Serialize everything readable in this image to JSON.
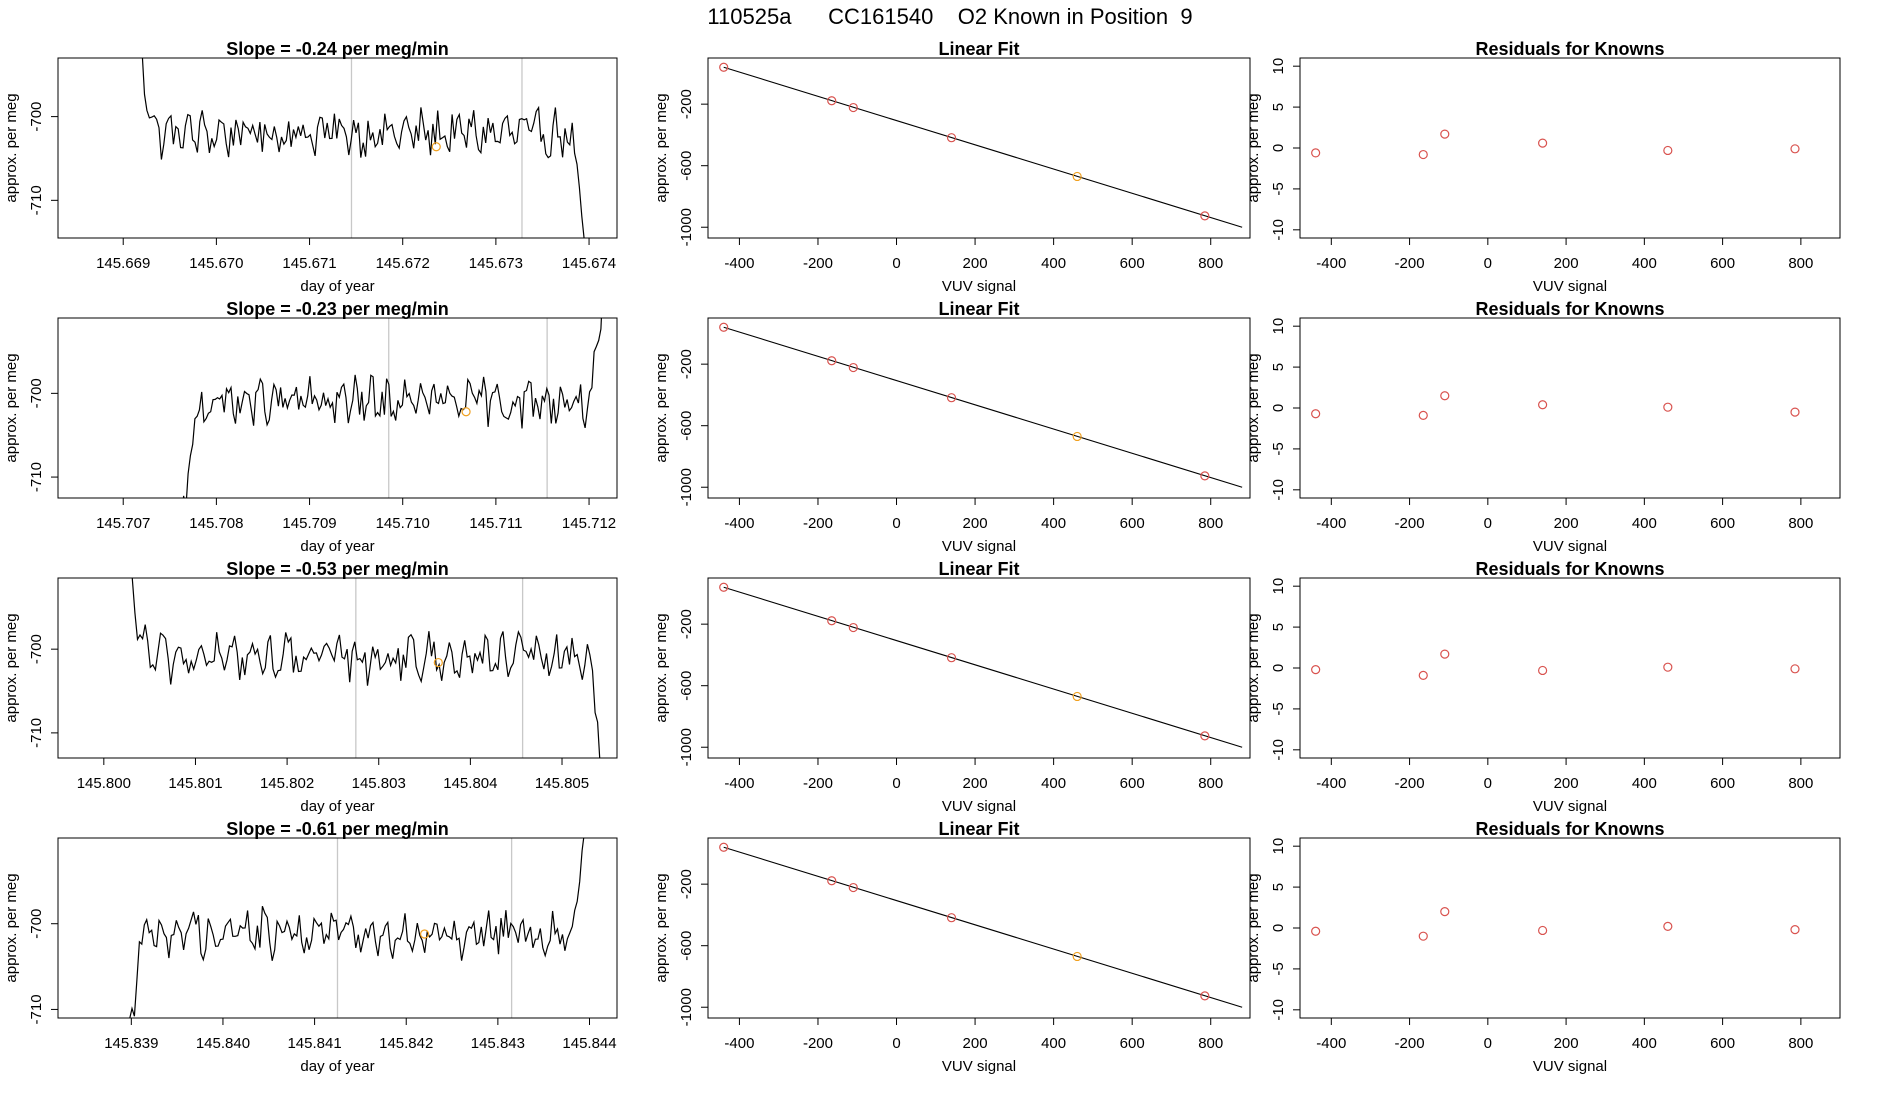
{
  "page_title": "110525a      CC161540    O2 Known in Position  9",
  "colors": {
    "trace": "#000000",
    "marker_red": "#d9534f",
    "marker_orange": "#f0a020",
    "refline": "#c8c8c8",
    "frame": "#000000"
  },
  "chart_data": [
    {
      "type": "line",
      "row": 0,
      "title": "Slope =  -0.24  per meg/min",
      "xlabel": "day of year",
      "ylabel": "approx. per meg",
      "xlim": [
        145.6683,
        145.6743
      ],
      "ylim": [
        -714.5,
        -693
      ],
      "xticks": [
        145.669,
        145.67,
        145.671,
        145.672,
        145.673,
        145.674
      ],
      "xtick_labels": [
        "145.669",
        "145.670",
        "145.671",
        "145.672",
        "145.673",
        "145.674"
      ],
      "yticks": [
        -700,
        -710
      ],
      "ytick_labels": [
        "-700",
        "-710"
      ],
      "start": 145.6691,
      "end": 145.674,
      "enter": "top",
      "exit": "bottom",
      "mean": -702,
      "vlines": [
        145.67145,
        145.67328
      ],
      "marker": [
        145.67236,
        -703.6
      ]
    },
    {
      "type": "bar-free-residuals",
      "row": 0,
      "title": "Linear Fit",
      "xlabel": "VUV signal",
      "ylabel": "approx. per meg",
      "xlim": [
        -480,
        900
      ],
      "ylim": [
        -1070,
        100
      ],
      "xticks": [
        -400,
        -200,
        0,
        200,
        400,
        600,
        800
      ],
      "xtick_labels": [
        "-400",
        "-200",
        "0",
        "200",
        "400",
        "600",
        "800"
      ],
      "yticks": [
        -200,
        -600,
        -1000
      ],
      "ytick_labels": [
        "-200",
        "-600",
        "-1000"
      ],
      "fit_line": [
        [
          -440,
          40
        ],
        [
          880,
          -1000
        ]
      ],
      "points": [
        [
          -440,
          40
        ],
        [
          -165,
          -178
        ],
        [
          -110,
          -222
        ],
        [
          140,
          -418
        ],
        [
          460,
          -670
        ],
        [
          785,
          -926
        ]
      ],
      "highlight_index": 4
    },
    {
      "type": "scatter",
      "row": 0,
      "title": "Residuals for Knowns",
      "xlabel": "VUV signal",
      "ylabel": "approx. per meg",
      "xlim": [
        -480,
        900
      ],
      "ylim": [
        -11,
        11
      ],
      "xticks": [
        -400,
        -200,
        0,
        200,
        400,
        600,
        800
      ],
      "xtick_labels": [
        "-400",
        "-200",
        "0",
        "200",
        "400",
        "600",
        "800"
      ],
      "yticks": [
        10,
        5,
        0,
        -5,
        -10
      ],
      "ytick_labels": [
        "10",
        "5",
        "0",
        "-5",
        "-10"
      ],
      "x": [
        -440,
        -165,
        -110,
        140,
        460,
        785
      ],
      "y": [
        -0.6,
        -0.8,
        1.7,
        0.6,
        -0.3,
        -0.1
      ]
    },
    {
      "type": "line",
      "row": 1,
      "title": "Slope =  -0.23  per meg/min",
      "xlabel": "day of year",
      "ylabel": "approx. per meg",
      "xlim": [
        145.7063,
        145.7123
      ],
      "ylim": [
        -712.5,
        -691
      ],
      "xticks": [
        145.707,
        145.708,
        145.709,
        145.71,
        145.711,
        145.712
      ],
      "xtick_labels": [
        "145.707",
        "145.708",
        "145.709",
        "145.710",
        "145.711",
        "145.712"
      ],
      "yticks": [
        -700,
        -710
      ],
      "ytick_labels": [
        "-700",
        "-710"
      ],
      "start": 145.7076,
      "end": 145.7122,
      "enter": "bottom",
      "exit": "top",
      "mean": -701,
      "vlines": [
        145.70985,
        145.71155
      ],
      "marker": [
        145.71068,
        -702.2
      ]
    },
    {
      "type": "bar-free-residuals",
      "row": 1,
      "title": "Linear Fit",
      "xlabel": "VUV signal",
      "ylabel": "approx. per meg",
      "xlim": [
        -480,
        900
      ],
      "ylim": [
        -1070,
        100
      ],
      "xticks": [
        -400,
        -200,
        0,
        200,
        400,
        600,
        800
      ],
      "xtick_labels": [
        "-400",
        "-200",
        "0",
        "200",
        "400",
        "600",
        "800"
      ],
      "yticks": [
        -200,
        -600,
        -1000
      ],
      "ytick_labels": [
        "-200",
        "-600",
        "-1000"
      ],
      "fit_line": [
        [
          -440,
          40
        ],
        [
          880,
          -1000
        ]
      ],
      "points": [
        [
          -440,
          40
        ],
        [
          -165,
          -178
        ],
        [
          -110,
          -222
        ],
        [
          140,
          -418
        ],
        [
          460,
          -670
        ],
        [
          785,
          -926
        ]
      ],
      "highlight_index": 4
    },
    {
      "type": "scatter",
      "row": 1,
      "title": "Residuals for Knowns",
      "xlabel": "VUV signal",
      "ylabel": "approx. per meg",
      "xlim": [
        -480,
        900
      ],
      "ylim": [
        -11,
        11
      ],
      "xticks": [
        -400,
        -200,
        0,
        200,
        400,
        600,
        800
      ],
      "xtick_labels": [
        "-400",
        "-200",
        "0",
        "200",
        "400",
        "600",
        "800"
      ],
      "yticks": [
        10,
        5,
        0,
        -5,
        -10
      ],
      "ytick_labels": [
        "10",
        "5",
        "0",
        "-5",
        "-10"
      ],
      "x": [
        -440,
        -165,
        -110,
        140,
        460,
        785
      ],
      "y": [
        -0.7,
        -0.9,
        1.5,
        0.4,
        0.1,
        -0.5
      ]
    },
    {
      "type": "line",
      "row": 2,
      "title": "Slope =  -0.53  per meg/min",
      "xlabel": "day of year",
      "ylabel": "approx. per meg",
      "xlim": [
        145.7995,
        145.8056
      ],
      "ylim": [
        -713,
        -691.5
      ],
      "xticks": [
        145.8,
        145.801,
        145.802,
        145.803,
        145.804,
        145.805
      ],
      "xtick_labels": [
        "145.800",
        "145.801",
        "145.802",
        "145.803",
        "145.804",
        "145.805"
      ],
      "yticks": [
        -700,
        -710
      ],
      "ytick_labels": [
        "-700",
        "-710"
      ],
      "start": 145.8002,
      "end": 145.8055,
      "enter": "top",
      "exit": "bottom",
      "mean": -701,
      "vlines": [
        145.80275,
        145.80457
      ],
      "marker": [
        145.80365,
        -701.6
      ]
    },
    {
      "type": "bar-free-residuals",
      "row": 2,
      "title": "Linear Fit",
      "xlabel": "VUV signal",
      "ylabel": "approx. per meg",
      "xlim": [
        -480,
        900
      ],
      "ylim": [
        -1070,
        100
      ],
      "xticks": [
        -400,
        -200,
        0,
        200,
        400,
        600,
        800
      ],
      "xtick_labels": [
        "-400",
        "-200",
        "0",
        "200",
        "400",
        "600",
        "800"
      ],
      "yticks": [
        -200,
        -600,
        -1000
      ],
      "ytick_labels": [
        "-200",
        "-600",
        "-1000"
      ],
      "fit_line": [
        [
          -440,
          40
        ],
        [
          880,
          -1000
        ]
      ],
      "points": [
        [
          -440,
          40
        ],
        [
          -165,
          -178
        ],
        [
          -110,
          -222
        ],
        [
          140,
          -418
        ],
        [
          460,
          -670
        ],
        [
          785,
          -926
        ]
      ],
      "highlight_index": 4
    },
    {
      "type": "scatter",
      "row": 2,
      "title": "Residuals for Knowns",
      "xlabel": "VUV signal",
      "ylabel": "approx. per meg",
      "xlim": [
        -480,
        900
      ],
      "ylim": [
        -11,
        11
      ],
      "xticks": [
        -400,
        -200,
        0,
        200,
        400,
        600,
        800
      ],
      "xtick_labels": [
        "-400",
        "-200",
        "0",
        "200",
        "400",
        "600",
        "800"
      ],
      "yticks": [
        10,
        5,
        0,
        -5,
        -10
      ],
      "ytick_labels": [
        "10",
        "5",
        "0",
        "-5",
        "-10"
      ],
      "x": [
        -440,
        -165,
        -110,
        140,
        460,
        785
      ],
      "y": [
        -0.2,
        -0.9,
        1.7,
        -0.3,
        0.1,
        -0.1
      ]
    },
    {
      "type": "line",
      "row": 3,
      "title": "Slope =  -0.61  per meg/min",
      "xlabel": "day of year",
      "ylabel": "approx. per meg",
      "xlim": [
        145.8382,
        145.8443
      ],
      "ylim": [
        -711,
        -690
      ],
      "xticks": [
        145.839,
        145.84,
        145.841,
        145.842,
        145.843,
        145.844
      ],
      "xtick_labels": [
        "145.839",
        "145.840",
        "145.841",
        "145.842",
        "145.843",
        "145.844"
      ],
      "yticks": [
        -700,
        -710
      ],
      "ytick_labels": [
        "-700",
        "-710"
      ],
      "start": 145.8389,
      "end": 145.844,
      "enter": "bottom",
      "exit": "top",
      "mean": -701,
      "vlines": [
        145.84125,
        145.84315
      ],
      "marker": [
        145.8422,
        -701.2
      ]
    },
    {
      "type": "bar-free-residuals",
      "row": 3,
      "title": "Linear Fit",
      "xlabel": "VUV signal",
      "ylabel": "approx. per meg",
      "xlim": [
        -480,
        900
      ],
      "ylim": [
        -1070,
        100
      ],
      "xticks": [
        -400,
        -200,
        0,
        200,
        400,
        600,
        800
      ],
      "xtick_labels": [
        "-400",
        "-200",
        "0",
        "200",
        "400",
        "600",
        "800"
      ],
      "yticks": [
        -200,
        -600,
        -1000
      ],
      "ytick_labels": [
        "-200",
        "-600",
        "-1000"
      ],
      "fit_line": [
        [
          -440,
          40
        ],
        [
          880,
          -1000
        ]
      ],
      "points": [
        [
          -440,
          40
        ],
        [
          -165,
          -178
        ],
        [
          -110,
          -222
        ],
        [
          140,
          -418
        ],
        [
          460,
          -670
        ],
        [
          785,
          -926
        ]
      ],
      "highlight_index": 4
    },
    {
      "type": "scatter",
      "row": 3,
      "title": "Residuals for Knowns",
      "xlabel": "VUV signal",
      "ylabel": "approx. per meg",
      "xlim": [
        -480,
        900
      ],
      "ylim": [
        -11,
        11
      ],
      "xticks": [
        -400,
        -200,
        0,
        200,
        400,
        600,
        800
      ],
      "xtick_labels": [
        "-400",
        "-200",
        "0",
        "200",
        "400",
        "600",
        "800"
      ],
      "yticks": [
        10,
        5,
        0,
        -5,
        -10
      ],
      "ytick_labels": [
        "10",
        "5",
        "0",
        "-5",
        "-10"
      ],
      "x": [
        -440,
        -165,
        -110,
        140,
        460,
        785
      ],
      "y": [
        -0.4,
        -1.0,
        2.0,
        -0.3,
        0.2,
        -0.2
      ]
    }
  ]
}
